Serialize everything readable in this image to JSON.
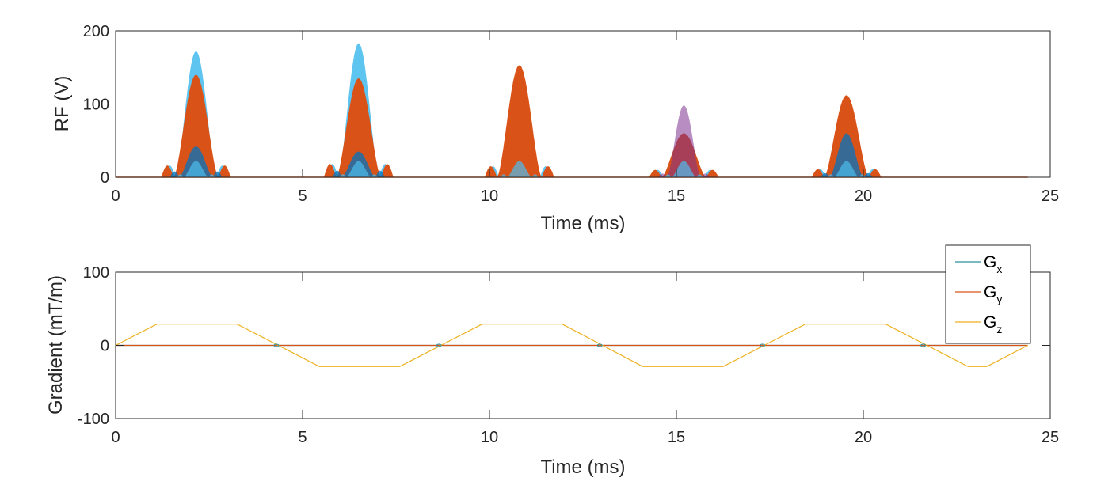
{
  "chart_data": [
    {
      "type": "area",
      "xlabel": "Time (ms)",
      "ylabel": "RF (V)",
      "xlim": [
        0,
        25
      ],
      "ylim": [
        0,
        200
      ],
      "xticks": [
        "0",
        "5",
        "10",
        "15",
        "20",
        "25"
      ],
      "yticks": [
        "0",
        "100",
        "200"
      ],
      "pulses": [
        {
          "center": 2.15,
          "half_width": 0.6,
          "peak_orange": 140,
          "peak_cyan": 172,
          "peak_blue": 42,
          "side_lobe": 16
        },
        {
          "center": 6.5,
          "half_width": 0.6,
          "peak_orange": 135,
          "peak_cyan": 183,
          "peak_blue": 35,
          "side_lobe": 18
        },
        {
          "center": 10.8,
          "half_width": 0.6,
          "peak_orange": 153,
          "peak_cyan": 25,
          "peak_blue": 0,
          "side_lobe": 15
        },
        {
          "center": 15.2,
          "half_width": 0.6,
          "peak_orange": 60,
          "peak_cyan": 25,
          "peak_blue": 98,
          "side_lobe": 10
        },
        {
          "center": 19.55,
          "half_width": 0.6,
          "peak_orange": 112,
          "peak_cyan": 22,
          "peak_blue": 60,
          "side_lobe": 11
        }
      ],
      "end_time": 24.4
    },
    {
      "type": "line",
      "xlabel": "Time (ms)",
      "ylabel": "Gradient (mT/m)",
      "xlim": [
        0,
        25
      ],
      "ylim": [
        -100,
        100
      ],
      "xticks": [
        "0",
        "5",
        "10",
        "15",
        "20",
        "25"
      ],
      "yticks": [
        "-100",
        "0",
        "100"
      ],
      "series": [
        {
          "name": "G",
          "sub": "x",
          "color": "#2a8f9a",
          "x": [
            0,
            24.4
          ],
          "y": [
            0,
            0
          ]
        },
        {
          "name": "G",
          "sub": "y",
          "color": "#d95319",
          "x": [
            0,
            24.4
          ],
          "y": [
            0,
            0
          ]
        },
        {
          "name": "G",
          "sub": "z",
          "color": "#edb120",
          "x": [
            0,
            1.1,
            3.25,
            5.45,
            7.6,
            9.8,
            11.95,
            14.1,
            16.25,
            18.45,
            20.6,
            22.8,
            23.3,
            24.4
          ],
          "y": [
            0,
            29,
            29,
            -29,
            -29,
            29,
            29,
            -29,
            -29,
            29,
            29,
            -29,
            -29,
            0
          ]
        }
      ],
      "legend_position": "top-right"
    }
  ]
}
